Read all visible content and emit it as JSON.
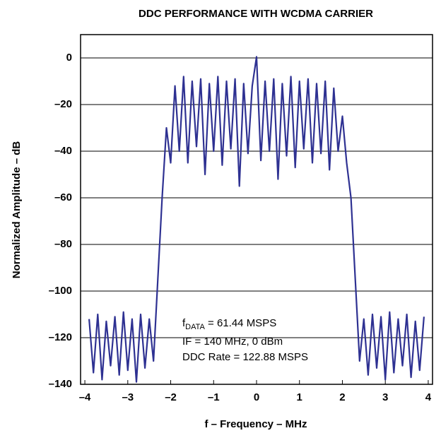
{
  "chart_data": {
    "type": "line",
    "title": "DDC PERFORMANCE WITH WCDMA CARRIER",
    "xlabel": "f – Frequency – MHz",
    "ylabel": "Normalized Amplitude – dB",
    "annotations": [
      {
        "text": "f",
        "sub": "DATA",
        "rest": " = 61.44 MSPS"
      },
      "IF = 140 MHz, 0 dBm",
      "DDC Rate = 122.88 MSPS"
    ],
    "xlim": [
      -4.1,
      4.1
    ],
    "ylim": [
      -140,
      10
    ],
    "xticks": [
      {
        "value": -4,
        "label": "–4"
      },
      {
        "value": -3,
        "label": "–3"
      },
      {
        "value": -2,
        "label": "–2"
      },
      {
        "value": -1,
        "label": "–1"
      },
      0,
      1,
      2,
      3,
      4
    ],
    "yticks": [
      0,
      {
        "value": -20,
        "label": "–20"
      },
      {
        "value": -40,
        "label": "–40"
      },
      {
        "value": -60,
        "label": "–60"
      },
      {
        "value": -80,
        "label": "–80"
      },
      {
        "value": -100,
        "label": "–100"
      },
      {
        "value": -120,
        "label": "–120"
      },
      {
        "value": -140,
        "label": "–140"
      }
    ],
    "grid": true,
    "series": [
      {
        "color": "#2e3192",
        "x": [
          -3.9,
          -3.8,
          -3.7,
          -3.6,
          -3.5,
          -3.4,
          -3.3,
          -3.2,
          -3.1,
          -3.0,
          -2.9,
          -2.8,
          -2.7,
          -2.6,
          -2.5,
          -2.4,
          -2.3,
          -2.2,
          -2.1,
          -2.0,
          -1.9,
          -1.8,
          -1.7,
          -1.6,
          -1.5,
          -1.4,
          -1.3,
          -1.2,
          -1.1,
          -1.0,
          -0.9,
          -0.8,
          -0.7,
          -0.6,
          -0.5,
          -0.4,
          -0.3,
          -0.2,
          -0.1,
          0,
          0.1,
          0.2,
          0.3,
          0.4,
          0.5,
          0.6,
          0.7,
          0.8,
          0.9,
          1.0,
          1.1,
          1.2,
          1.3,
          1.4,
          1.5,
          1.6,
          1.7,
          1.8,
          1.9,
          2.0,
          2.1,
          2.2,
          2.3,
          2.4,
          2.5,
          2.6,
          2.7,
          2.8,
          2.9,
          3.0,
          3.1,
          3.2,
          3.3,
          3.4,
          3.5,
          3.6,
          3.7,
          3.8,
          3.9
        ],
        "values": [
          -112,
          -135,
          -110,
          -138,
          -113,
          -132,
          -111,
          -136,
          -109,
          -134,
          -112,
          -139,
          -110,
          -133,
          -112,
          -130,
          -95,
          -60,
          -30,
          -45,
          -12,
          -40,
          -8,
          -45,
          -10,
          -38,
          -9,
          -50,
          -11,
          -40,
          -8,
          -46,
          -10,
          -39,
          -9,
          -55,
          -11,
          -41,
          -12,
          0.5,
          -44,
          -10,
          -40,
          -9,
          -52,
          -11,
          -42,
          -8,
          -47,
          -10,
          -39,
          -9,
          -45,
          -11,
          -41,
          -10,
          -48,
          -13,
          -40,
          -25,
          -45,
          -60,
          -95,
          -130,
          -112,
          -136,
          -110,
          -133,
          -111,
          -138,
          -109,
          -135,
          -112,
          -132,
          -110,
          -137,
          -113,
          -134,
          -111
        ]
      }
    ]
  }
}
